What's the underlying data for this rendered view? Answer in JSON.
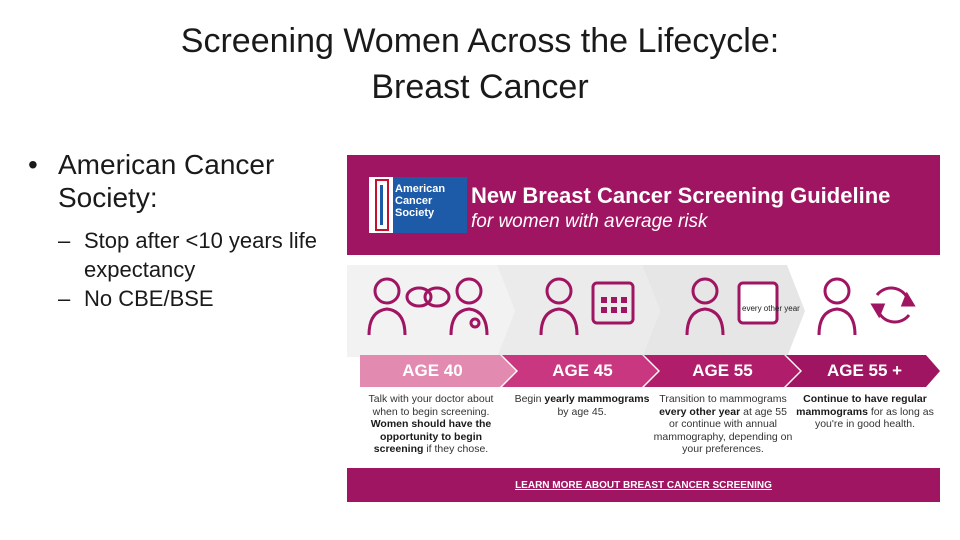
{
  "slide": {
    "title_line1": "Screening Women Across the Lifecycle:",
    "title_line2": "Breast Cancer"
  },
  "bullets": {
    "main": "American Cancer Society:",
    "sub": [
      "Stop after <10 years life expectancy",
      "No CBE/BSE"
    ]
  },
  "infographic": {
    "logo_lines": [
      "American",
      "Cancer",
      "Society"
    ],
    "title": "New Breast Cancer Screening Guideline",
    "subtitle": "for women with average risk",
    "calendar_note": "every other year",
    "ages": [
      "AGE 40",
      "AGE 45",
      "AGE 55",
      "AGE 55 +"
    ],
    "descriptions": [
      {
        "plain": "Talk with your doctor about when to begin screening.",
        "bold": "Women should have the opportunity to begin screening",
        "tail": "if they chose."
      },
      {
        "plain": "Begin",
        "bold": "yearly mammograms",
        "tail": "by age 45."
      },
      {
        "plain": "Transition to mammograms",
        "bold": "every other year",
        "tail": "at age 55 or continue with annual mammography, depending on your preferences."
      },
      {
        "plain": "",
        "bold": "Continue to have regular mammograms",
        "tail": "for as long as you're in good health."
      }
    ],
    "footer_link": "LEARN MORE ABOUT BREAST CANCER SCREENING",
    "colors": {
      "magenta": "#a01562",
      "pink_light": "#e28ab0",
      "pink_mid": "#c8377f",
      "navy": "#1d5aa8"
    }
  }
}
